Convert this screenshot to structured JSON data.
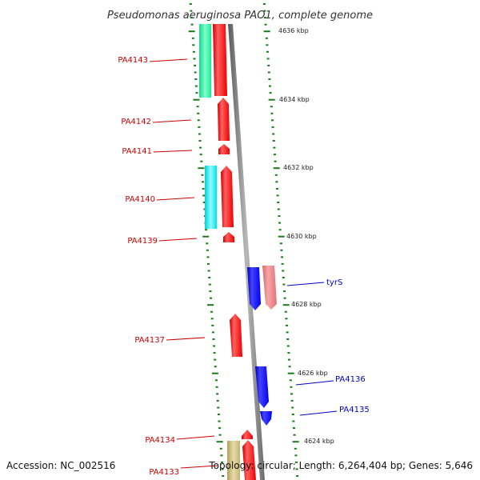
{
  "title": "Pseudomonas aeruginosa PAO1, complete genome",
  "footer": {
    "accession": "Accession: NC_002516",
    "topology": "Topology: circular; Length: 6,264,404 bp; Genes: 5,646"
  },
  "colors": {
    "forward_gene": "#ff0000",
    "reverse_gene": "#0000ff",
    "light_red_gene": "#ee7b80",
    "green_feature": "#22ee99",
    "cyan_feature": "#00e8ee",
    "tan_feature": "#c8b878",
    "backbone": "#808080",
    "tick": "#1a7a1a",
    "forward_label": "#cc0000",
    "reverse_label": "#0000cc"
  },
  "scale": {
    "ticks": [
      {
        "label": "4636 kbp"
      },
      {
        "label": "4634 kbp"
      },
      {
        "label": "4632 kbp"
      },
      {
        "label": "4630 kbp"
      },
      {
        "label": "4628 kbp"
      },
      {
        "label": "4626 kbp"
      },
      {
        "label": "4624 kbp"
      }
    ]
  },
  "gene_labels": [
    {
      "name": "PA4143",
      "strand": "forward"
    },
    {
      "name": "PA4142",
      "strand": "forward"
    },
    {
      "name": "PA4141",
      "strand": "forward"
    },
    {
      "name": "PA4140",
      "strand": "forward"
    },
    {
      "name": "PA4139",
      "strand": "forward"
    },
    {
      "name": "tyrS",
      "strand": "reverse"
    },
    {
      "name": "PA4137",
      "strand": "forward"
    },
    {
      "name": "PA4136",
      "strand": "reverse"
    },
    {
      "name": "PA4135",
      "strand": "reverse"
    },
    {
      "name": "PA4134",
      "strand": "forward"
    },
    {
      "name": "PA4133",
      "strand": "forward"
    }
  ]
}
